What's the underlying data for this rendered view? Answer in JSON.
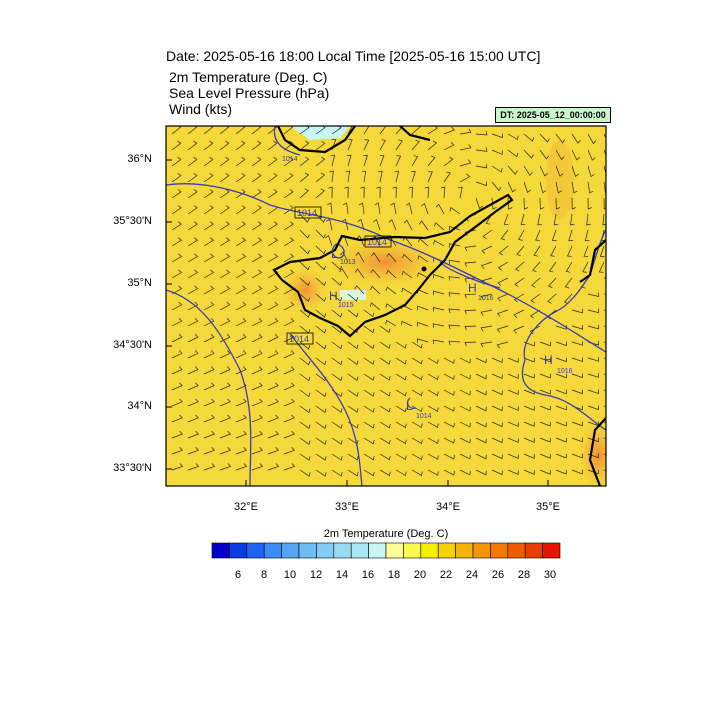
{
  "header": {
    "title": "Date: 2025-05-16  18:00 Local Time [2025-05-16  15:00 UTC]",
    "sub1": "2m Temperature (Deg. C)",
    "sub2": "Sea Level Pressure   (hPa)",
    "sub3": "Wind   (kts)",
    "dt": "DT: 2025-05_12_00:00:00"
  },
  "axes": {
    "lat_labels": [
      "36°N",
      "35°30'N",
      "35°N",
      "34°30'N",
      "34°N",
      "33°30'N"
    ],
    "lon_labels": [
      "32°E",
      "33°E",
      "34°E",
      "35°E"
    ]
  },
  "isobars": {
    "labels": [
      "1014",
      "1014",
      "1014",
      "1014",
      "1014",
      "1013",
      "1015",
      "1016",
      "1016",
      "1014"
    ],
    "highs": [
      "H",
      "H",
      "H"
    ],
    "lows": [
      "L",
      "L"
    ]
  },
  "colorbar": {
    "title": "2m Temperature (Deg. C)",
    "labels": [
      "6",
      "8",
      "10",
      "12",
      "14",
      "16",
      "18",
      "20",
      "22",
      "24",
      "26",
      "28",
      "30"
    ],
    "colors": [
      "#0000c8",
      "#0a3ce6",
      "#1e64f0",
      "#3c8cf5",
      "#55a5f5",
      "#6ebef5",
      "#82cdf5",
      "#96dcf5",
      "#aae6f5",
      "#c8f5f5",
      "#ffff96",
      "#fafa50",
      "#f5f000",
      "#f5d200",
      "#f5b400",
      "#f59600",
      "#f57800",
      "#f05a00",
      "#eb3c00",
      "#e61400"
    ]
  },
  "colors": {
    "land_field": "#f5d73c",
    "warm": "#f0a53c",
    "isobar": "#3c3cb4"
  }
}
